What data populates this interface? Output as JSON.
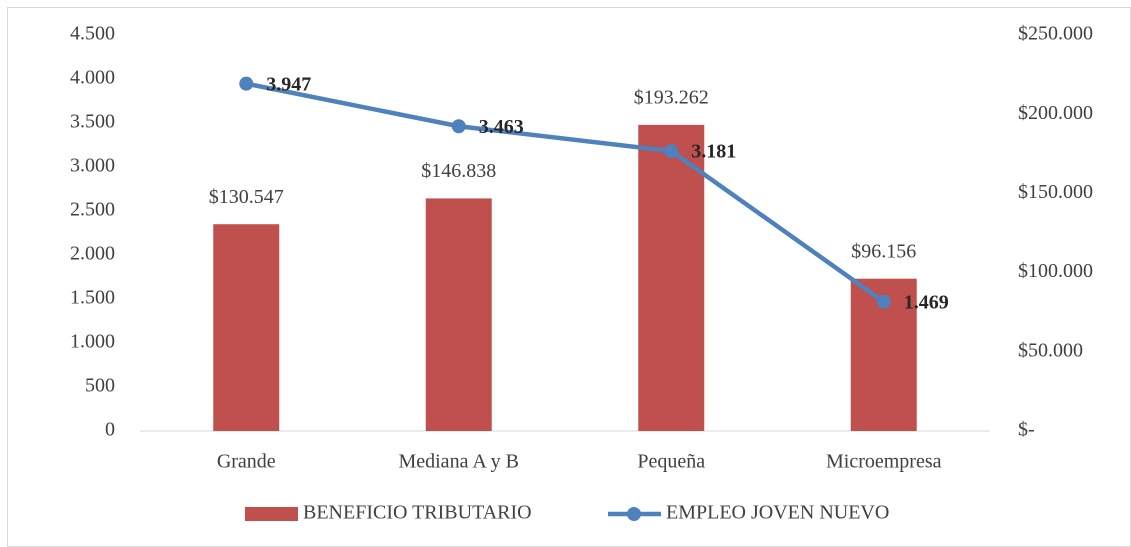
{
  "chart_data": {
    "type": "combo",
    "categories": [
      "Grande",
      "Mediana A y B",
      "Pequeña",
      "Microempresa"
    ],
    "series": [
      {
        "name": "BENEFICIO TRIBUTARIO",
        "type": "bar",
        "axis": "y2",
        "color": "#c0504d",
        "values": [
          130547,
          146838,
          193262,
          96156
        ],
        "value_labels": [
          "$130.547",
          "$146.838",
          "$193.262",
          "$96.156"
        ]
      },
      {
        "name": "EMPLEO JOVEN NUEVO",
        "type": "line",
        "axis": "y",
        "color": "#4f81bd",
        "values": [
          3947,
          3463,
          3181,
          1469
        ],
        "value_labels": [
          "3.947",
          "3.463",
          "3.181",
          "1.469"
        ]
      }
    ],
    "ylim": [
      0,
      4500
    ],
    "yticks": [
      0,
      500,
      {
        "value": 1000,
        "label": "1.000"
      },
      {
        "value": 1500,
        "label": "1.500"
      },
      {
        "value": 2000,
        "label": "2.000"
      },
      {
        "value": 2500,
        "label": "2.500"
      },
      {
        "value": 3000,
        "label": "3.000"
      },
      {
        "value": 3500,
        "label": "3.500"
      },
      {
        "value": 4000,
        "label": "4.000"
      },
      {
        "value": 4500,
        "label": "4.500"
      }
    ],
    "y2lim": [
      0,
      250000
    ],
    "y2ticks": [
      {
        "value": 0,
        "label": "$-"
      },
      {
        "value": 50000,
        "label": "$50.000"
      },
      {
        "value": 100000,
        "label": "$100.000"
      },
      {
        "value": 150000,
        "label": "$150.000"
      },
      {
        "value": 200000,
        "label": "$200.000"
      },
      {
        "value": 250000,
        "label": "$250.000"
      }
    ],
    "legend": "bottom",
    "grid": false
  }
}
